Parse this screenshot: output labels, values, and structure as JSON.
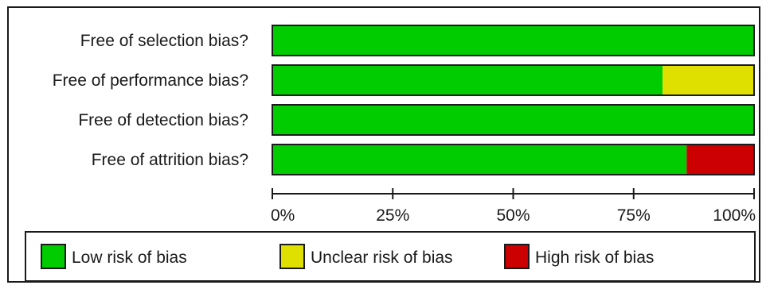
{
  "chart_data": {
    "type": "bar",
    "orientation": "horizontal",
    "stacked": true,
    "categories": [
      "Free of selection bias?",
      "Free of performance bias?",
      "Free of detection bias?",
      "Free of attrition bias?"
    ],
    "series": [
      {
        "name": "Low risk of bias",
        "color": "#00cc00",
        "values": [
          100,
          81,
          100,
          86
        ]
      },
      {
        "name": "Unclear risk of bias",
        "color": "#e0e000",
        "values": [
          0,
          19,
          0,
          0
        ]
      },
      {
        "name": "High risk of bias",
        "color": "#cc0000",
        "values": [
          0,
          0,
          0,
          14
        ]
      }
    ],
    "xlim": [
      0,
      100
    ],
    "x_ticks": [
      0,
      25,
      50,
      75,
      100
    ],
    "x_tick_labels": [
      "0%",
      "25%",
      "50%",
      "75%",
      "100%"
    ],
    "grid": false,
    "legend_placement": "bottom"
  }
}
